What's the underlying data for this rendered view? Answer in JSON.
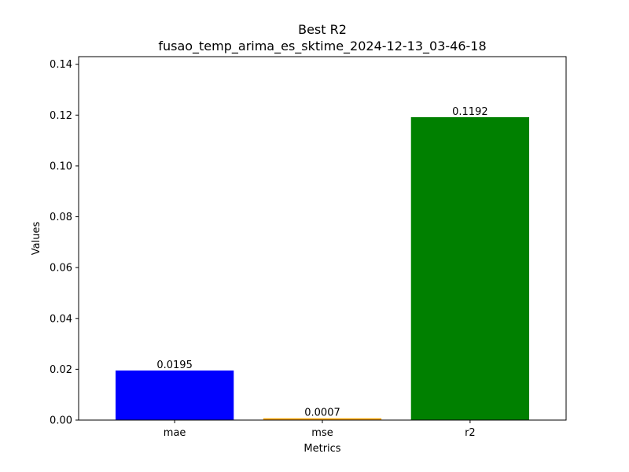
{
  "chart_data": {
    "type": "bar",
    "title": "Best R2",
    "subtitle": "fusao_temp_arima_es_sktime_2024-12-13_03-46-18",
    "xlabel": "Metrics",
    "ylabel": "Values",
    "categories": [
      "mae",
      "mse",
      "r2"
    ],
    "values": [
      0.0195,
      0.0007,
      0.1192
    ],
    "value_labels": [
      "0.0195",
      "0.0007",
      "0.1192"
    ],
    "colors": [
      "#0000ff",
      "#ffa500",
      "#008000"
    ],
    "ylim": [
      0,
      0.143
    ],
    "yticks": [
      0.0,
      0.02,
      0.04,
      0.06,
      0.08,
      0.1,
      0.12,
      0.14
    ],
    "ytick_labels": [
      "0.00",
      "0.02",
      "0.04",
      "0.06",
      "0.08",
      "0.10",
      "0.12",
      "0.14"
    ],
    "grid": false,
    "legend": "none"
  }
}
